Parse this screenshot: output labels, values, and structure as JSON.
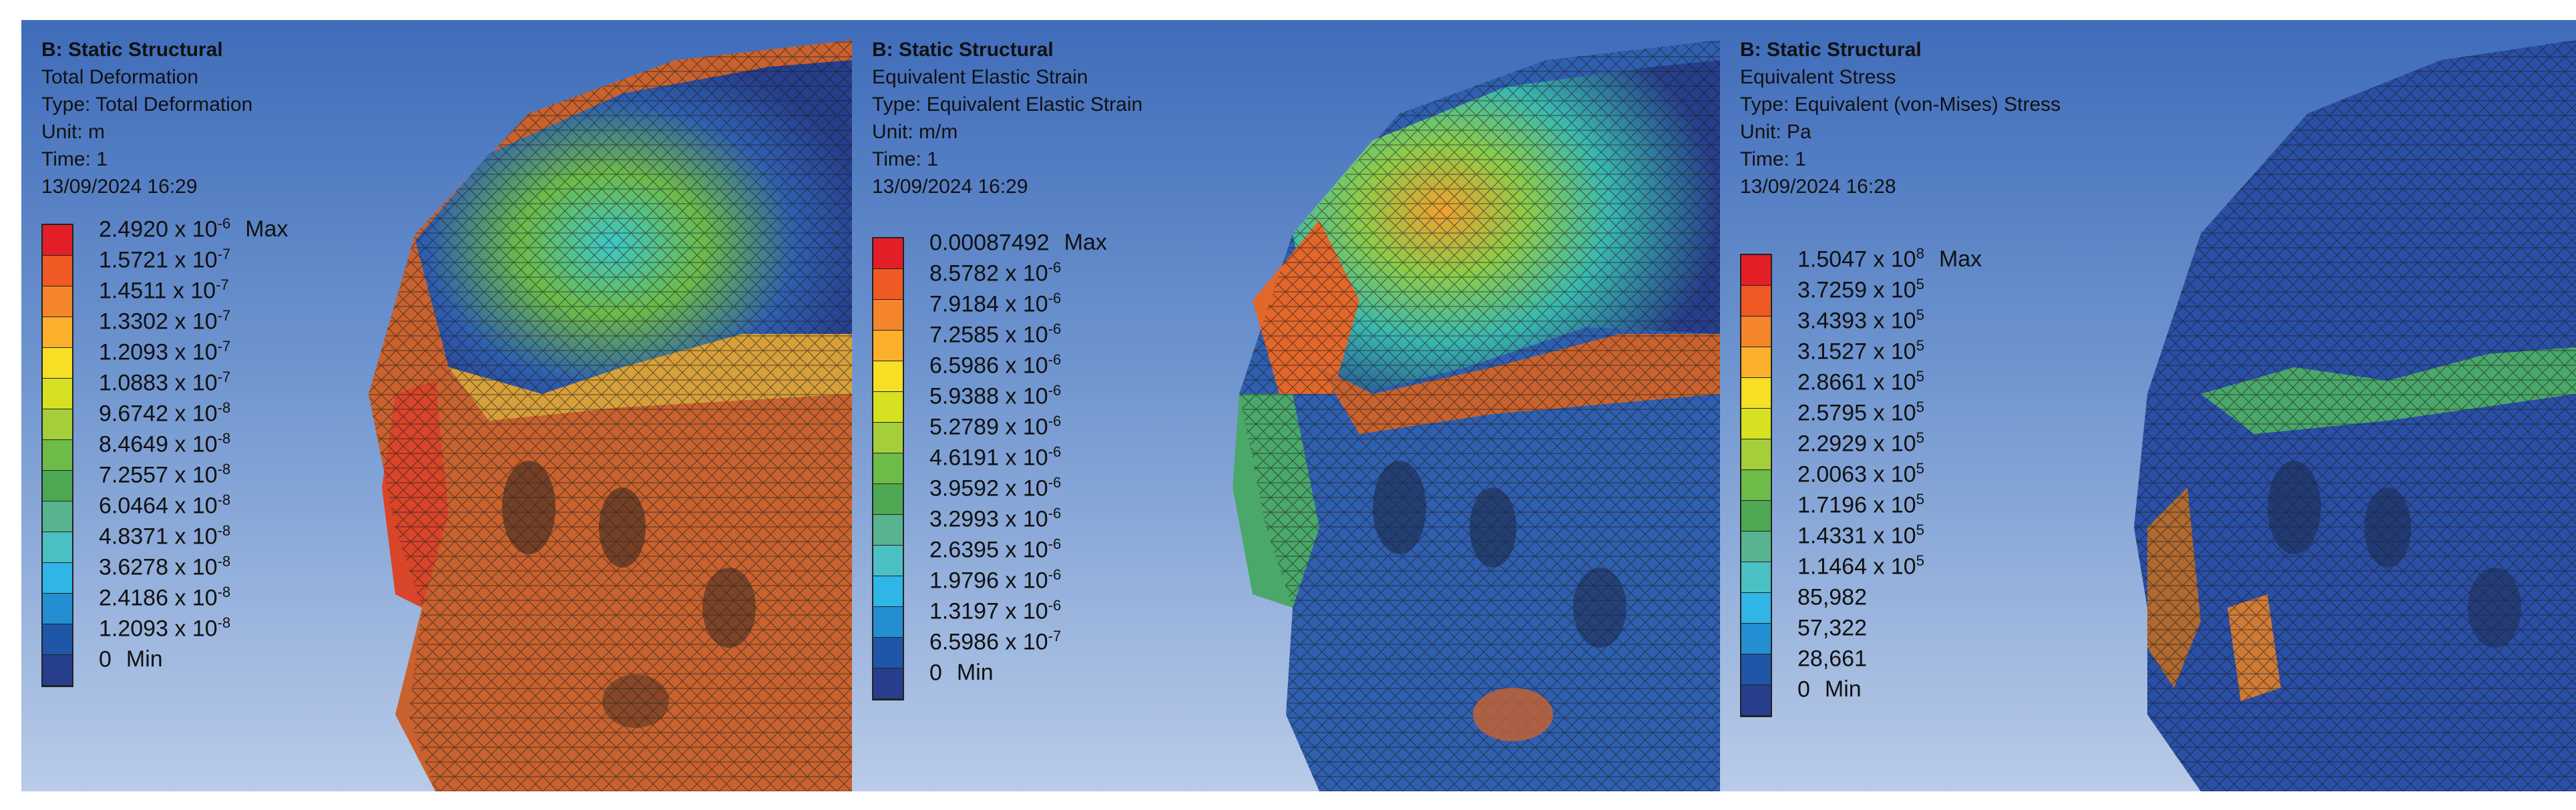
{
  "colors": [
    "#e21f26",
    "#ef5a24",
    "#f4852a",
    "#fbb02c",
    "#f6df24",
    "#d5e121",
    "#a4cf3a",
    "#6dbb49",
    "#4ea853",
    "#57b48f",
    "#4bc0c4",
    "#2fb6e6",
    "#238ed1",
    "#1f56a8",
    "#263e8c"
  ],
  "panels": [
    {
      "header": [
        "B: Static Structural",
        "Total Deformation",
        "Type: Total Deformation",
        "Unit: m",
        "Time: 1",
        "13/09/2024 16:29"
      ],
      "legend": [
        {
          "value": "2.4920 x 10",
          "exp": "-6",
          "tag": "Max"
        },
        {
          "value": "1.5721 x 10",
          "exp": "-7",
          "tag": ""
        },
        {
          "value": "1.4511 x 10",
          "exp": "-7",
          "tag": ""
        },
        {
          "value": "1.3302 x 10",
          "exp": "-7",
          "tag": ""
        },
        {
          "value": "1.2093 x 10",
          "exp": "-7",
          "tag": ""
        },
        {
          "value": "1.0883 x 10",
          "exp": "-7",
          "tag": ""
        },
        {
          "value": "9.6742 x 10",
          "exp": "-8",
          "tag": ""
        },
        {
          "value": "8.4649 x 10",
          "exp": "-8",
          "tag": ""
        },
        {
          "value": "7.2557 x 10",
          "exp": "-8",
          "tag": ""
        },
        {
          "value": "6.0464 x 10",
          "exp": "-8",
          "tag": ""
        },
        {
          "value": "4.8371 x 10",
          "exp": "-8",
          "tag": ""
        },
        {
          "value": "3.6278 x 10",
          "exp": "-8",
          "tag": ""
        },
        {
          "value": "2.4186 x 10",
          "exp": "-8",
          "tag": ""
        },
        {
          "value": "1.2093 x 10",
          "exp": "-8",
          "tag": ""
        },
        {
          "value": "0",
          "exp": "",
          "tag": "Min"
        }
      ]
    },
    {
      "header": [
        "B: Static Structural",
        "Equivalent Elastic Strain",
        "Type: Equivalent Elastic Strain",
        "Unit: m/m",
        "Time: 1",
        "13/09/2024 16:29"
      ],
      "legend": [
        {
          "value": "0.00087492",
          "exp": "",
          "tag": "Max"
        },
        {
          "value": "8.5782 x 10",
          "exp": "-6",
          "tag": ""
        },
        {
          "value": "7.9184 x 10",
          "exp": "-6",
          "tag": ""
        },
        {
          "value": "7.2585 x 10",
          "exp": "-6",
          "tag": ""
        },
        {
          "value": "6.5986 x 10",
          "exp": "-6",
          "tag": ""
        },
        {
          "value": "5.9388 x 10",
          "exp": "-6",
          "tag": ""
        },
        {
          "value": "5.2789 x 10",
          "exp": "-6",
          "tag": ""
        },
        {
          "value": "4.6191 x 10",
          "exp": "-6",
          "tag": ""
        },
        {
          "value": "3.9592 x 10",
          "exp": "-6",
          "tag": ""
        },
        {
          "value": "3.2993 x 10",
          "exp": "-6",
          "tag": ""
        },
        {
          "value": "2.6395 x 10",
          "exp": "-6",
          "tag": ""
        },
        {
          "value": "1.9796 x 10",
          "exp": "-6",
          "tag": ""
        },
        {
          "value": "1.3197 x 10",
          "exp": "-6",
          "tag": ""
        },
        {
          "value": "6.5986 x 10",
          "exp": "-7",
          "tag": ""
        },
        {
          "value": "0",
          "exp": "",
          "tag": "Min"
        }
      ]
    },
    {
      "header": [
        "B: Static Structural",
        "Equivalent Stress",
        "Type: Equivalent (von-Mises) Stress",
        "Unit: Pa",
        "Time: 1",
        "13/09/2024 16:28"
      ],
      "legend": [
        {
          "value": "1.5047 x 10",
          "exp": "8",
          "tag": "Max"
        },
        {
          "value": "3.7259 x 10",
          "exp": "5",
          "tag": ""
        },
        {
          "value": "3.4393 x 10",
          "exp": "5",
          "tag": ""
        },
        {
          "value": "3.1527 x 10",
          "exp": "5",
          "tag": ""
        },
        {
          "value": "2.8661 x 10",
          "exp": "5",
          "tag": ""
        },
        {
          "value": "2.5795 x 10",
          "exp": "5",
          "tag": ""
        },
        {
          "value": "2.2929 x 10",
          "exp": "5",
          "tag": ""
        },
        {
          "value": "2.0063 x 10",
          "exp": "5",
          "tag": ""
        },
        {
          "value": "1.7196 x 10",
          "exp": "5",
          "tag": ""
        },
        {
          "value": "1.4331 x 10",
          "exp": "5",
          "tag": ""
        },
        {
          "value": "1.1464 x 10",
          "exp": "5",
          "tag": ""
        },
        {
          "value": "85,982",
          "exp": "",
          "tag": ""
        },
        {
          "value": "57,322",
          "exp": "",
          "tag": ""
        },
        {
          "value": "28,661",
          "exp": "",
          "tag": ""
        },
        {
          "value": "0",
          "exp": "",
          "tag": "Min"
        }
      ]
    }
  ]
}
